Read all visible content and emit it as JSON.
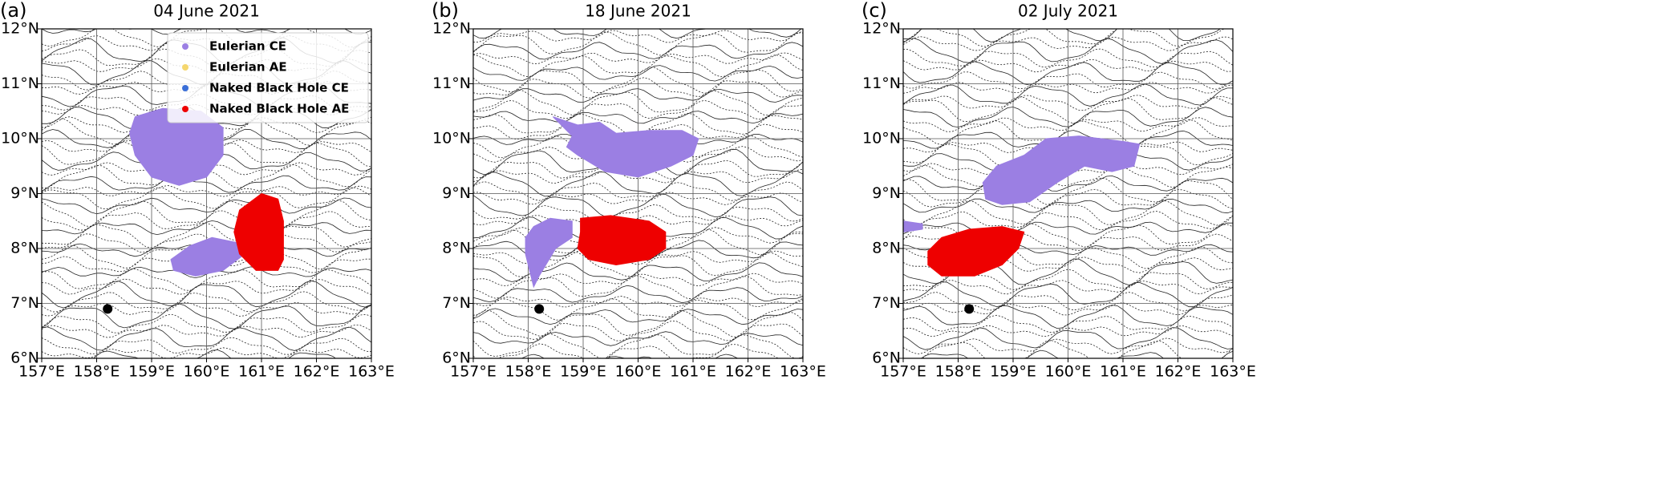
{
  "chart_data": [
    {
      "type": "map",
      "panel_label": "(a)",
      "title": "04 June 2021",
      "xlim": [
        157,
        163
      ],
      "ylim": [
        6,
        12
      ],
      "xticks": [
        {
          "value": 157,
          "label": "157°E"
        },
        {
          "value": 158,
          "label": "158°E"
        },
        {
          "value": 159,
          "label": "159°E"
        },
        {
          "value": 160,
          "label": "160°E"
        },
        {
          "value": 161,
          "label": "161°E"
        },
        {
          "value": 162,
          "label": "162°E"
        },
        {
          "value": 163,
          "label": "163°E"
        }
      ],
      "yticks": [
        {
          "value": 6,
          "label": "6°N"
        },
        {
          "value": 7,
          "label": "7°N"
        },
        {
          "value": 8,
          "label": "8°N"
        },
        {
          "value": 9,
          "label": "9°N"
        },
        {
          "value": 10,
          "label": "10°N"
        },
        {
          "value": 11,
          "label": "11°N"
        },
        {
          "value": 12,
          "label": "12°N"
        }
      ],
      "grid": true,
      "legend": "upper right",
      "series": [
        {
          "name": "Eulerian CE",
          "color": "#9b7fe3",
          "polygons": [
            {
              "x": [
                158.7,
                159.2,
                159.9,
                160.3,
                160.3,
                160.0,
                159.5,
                159.0,
                158.7,
                158.6
              ],
              "y": [
                10.4,
                10.55,
                10.5,
                10.2,
                9.7,
                9.3,
                9.15,
                9.3,
                9.7,
                10.1
              ]
            },
            {
              "x": [
                159.35,
                159.7,
                160.1,
                160.6,
                160.7,
                160.3,
                159.8,
                159.4
              ],
              "y": [
                7.8,
                8.05,
                8.2,
                8.1,
                7.9,
                7.6,
                7.5,
                7.6
              ]
            }
          ]
        },
        {
          "name": "Eulerian AE",
          "color": "#f5d76e",
          "polygons": []
        },
        {
          "name": "Naked Black Hole CE",
          "color": "#3b6fd8",
          "polygons": []
        },
        {
          "name": "Naked Black Hole AE",
          "color": "#ee0000",
          "polygons": [
            {
              "x": [
                161.0,
                161.3,
                161.4,
                161.4,
                161.3,
                160.9,
                160.6,
                160.5,
                160.6
              ],
              "y": [
                9.0,
                8.9,
                8.5,
                7.8,
                7.6,
                7.6,
                7.9,
                8.3,
                8.7
              ]
            }
          ]
        }
      ]
    },
    {
      "type": "map",
      "panel_label": "(b)",
      "title": "18 June 2021",
      "xlim": [
        157,
        163
      ],
      "ylim": [
        6,
        12
      ],
      "xticks": [
        {
          "value": 157,
          "label": "157°E"
        },
        {
          "value": 158,
          "label": "158°E"
        },
        {
          "value": 159,
          "label": "159°E"
        },
        {
          "value": 160,
          "label": "160°E"
        },
        {
          "value": 161,
          "label": "161°E"
        },
        {
          "value": 162,
          "label": "162°E"
        },
        {
          "value": 163,
          "label": "163°E"
        }
      ],
      "yticks": [
        {
          "value": 6,
          "label": "6°N"
        },
        {
          "value": 7,
          "label": "7°N"
        },
        {
          "value": 8,
          "label": "8°N"
        },
        {
          "value": 9,
          "label": "9°N"
        },
        {
          "value": 10,
          "label": "10°N"
        },
        {
          "value": 11,
          "label": "11°N"
        },
        {
          "value": 12,
          "label": "12°N"
        }
      ],
      "grid": true,
      "series": [
        {
          "color": "#9b7fe3",
          "polygons": [
            {
              "x": [
                158.45,
                158.9,
                159.3,
                159.6,
                160.2,
                160.8,
                161.1,
                161.0,
                160.6,
                160.0,
                159.4,
                158.9,
                158.7,
                158.8
              ],
              "y": [
                10.4,
                10.25,
                10.3,
                10.1,
                10.15,
                10.15,
                10.0,
                9.7,
                9.5,
                9.3,
                9.4,
                9.7,
                9.85,
                10.05
              ]
            },
            {
              "x": [
                158.1,
                158.4,
                158.8,
                158.8,
                158.5,
                158.2,
                158.1,
                157.95,
                157.95
              ],
              "y": [
                8.4,
                8.55,
                8.5,
                8.2,
                8.0,
                7.5,
                7.3,
                7.9,
                8.2
              ]
            }
          ]
        },
        {
          "color": "#ee0000",
          "polygons": [
            {
              "x": [
                158.95,
                159.5,
                160.2,
                160.5,
                160.5,
                160.2,
                159.6,
                159.1,
                158.9,
                158.95
              ],
              "y": [
                8.55,
                8.6,
                8.5,
                8.3,
                8.0,
                7.8,
                7.7,
                7.8,
                8.0,
                8.3
              ]
            }
          ]
        }
      ]
    },
    {
      "type": "map",
      "panel_label": "(c)",
      "title": "02 July 2021",
      "xlim": [
        157,
        163
      ],
      "ylim": [
        6,
        12
      ],
      "xticks": [
        {
          "value": 157,
          "label": "157°E"
        },
        {
          "value": 158,
          "label": "158°E"
        },
        {
          "value": 159,
          "label": "159°E"
        },
        {
          "value": 160,
          "label": "160°E"
        },
        {
          "value": 161,
          "label": "161°E"
        },
        {
          "value": 162,
          "label": "162°E"
        },
        {
          "value": 163,
          "label": "163°E"
        }
      ],
      "yticks": [
        {
          "value": 6,
          "label": "6°N"
        },
        {
          "value": 7,
          "label": "7°N"
        },
        {
          "value": 8,
          "label": "8°N"
        },
        {
          "value": 9,
          "label": "9°N"
        },
        {
          "value": 10,
          "label": "10°N"
        },
        {
          "value": 11,
          "label": "11°N"
        },
        {
          "value": 12,
          "label": "12°N"
        }
      ],
      "grid": true,
      "series": [
        {
          "color": "#9b7fe3",
          "polygons": [
            {
              "x": [
                158.45,
                158.7,
                159.2,
                159.6,
                160.2,
                161.0,
                161.3,
                161.2,
                160.8,
                160.3,
                159.8,
                159.3,
                158.8,
                158.5
              ],
              "y": [
                9.2,
                9.5,
                9.7,
                10.0,
                10.05,
                9.95,
                9.9,
                9.5,
                9.4,
                9.5,
                9.2,
                8.85,
                8.8,
                8.9
              ]
            },
            {
              "x": [
                157.0,
                157.35,
                157.35,
                157.0
              ],
              "y": [
                8.5,
                8.45,
                8.35,
                8.3
              ]
            }
          ]
        },
        {
          "color": "#ee0000",
          "polygons": [
            {
              "x": [
                157.45,
                157.7,
                158.2,
                158.8,
                159.2,
                159.1,
                158.8,
                158.3,
                157.7,
                157.45
              ],
              "y": [
                7.95,
                8.2,
                8.35,
                8.4,
                8.3,
                8.0,
                7.7,
                7.5,
                7.5,
                7.7
              ]
            }
          ]
        }
      ]
    }
  ]
}
